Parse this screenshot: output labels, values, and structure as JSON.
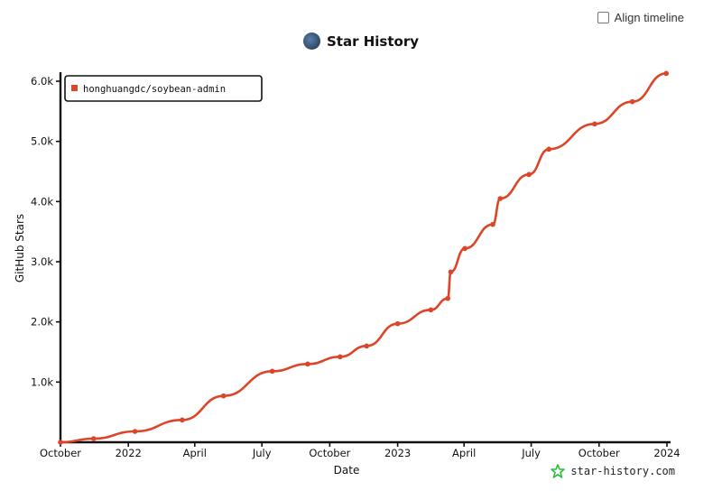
{
  "align_timeline_label": "Align timeline",
  "chart_data": {
    "type": "line",
    "title": "Star History",
    "xlabel": "Date",
    "ylabel": "GitHub Stars",
    "ylim": [
      0,
      6000
    ],
    "yticks": [
      {
        "value": 1000,
        "label": "1.0k"
      },
      {
        "value": 2000,
        "label": "2.0k"
      },
      {
        "value": 3000,
        "label": "3.0k"
      },
      {
        "value": 4000,
        "label": "4.0k"
      },
      {
        "value": 5000,
        "label": "5.0k"
      },
      {
        "value": 6000,
        "label": "6.0k"
      }
    ],
    "xlim": [
      "2021-10-01",
      "2024-01-01"
    ],
    "xticks": [
      {
        "date": "2021-10-01",
        "label": "October"
      },
      {
        "date": "2022-01-01",
        "label": "2022"
      },
      {
        "date": "2022-04-01",
        "label": "April"
      },
      {
        "date": "2022-07-01",
        "label": "July"
      },
      {
        "date": "2022-10-01",
        "label": "October"
      },
      {
        "date": "2023-01-01",
        "label": "2023"
      },
      {
        "date": "2023-04-01",
        "label": "April"
      },
      {
        "date": "2023-07-01",
        "label": "July"
      },
      {
        "date": "2023-10-01",
        "label": "October"
      },
      {
        "date": "2024-01-01",
        "label": "2024"
      }
    ],
    "legend_position": "top-left",
    "series": [
      {
        "name": "honghuangdc/soybean-admin",
        "color": "#dd4528",
        "points": [
          {
            "x": "2021-10-01",
            "y": 0
          },
          {
            "x": "2021-11-15",
            "y": 60
          },
          {
            "x": "2022-01-10",
            "y": 180
          },
          {
            "x": "2022-03-15",
            "y": 370
          },
          {
            "x": "2022-05-10",
            "y": 770
          },
          {
            "x": "2022-07-15",
            "y": 1180
          },
          {
            "x": "2022-09-01",
            "y": 1300
          },
          {
            "x": "2022-10-15",
            "y": 1420
          },
          {
            "x": "2022-11-20",
            "y": 1600
          },
          {
            "x": "2023-01-01",
            "y": 1970
          },
          {
            "x": "2023-02-15",
            "y": 2200
          },
          {
            "x": "2023-03-10",
            "y": 2390
          },
          {
            "x": "2023-03-14",
            "y": 2830
          },
          {
            "x": "2023-04-02",
            "y": 3220
          },
          {
            "x": "2023-05-10",
            "y": 3620
          },
          {
            "x": "2023-05-20",
            "y": 4050
          },
          {
            "x": "2023-06-28",
            "y": 4450
          },
          {
            "x": "2023-07-25",
            "y": 4870
          },
          {
            "x": "2023-09-25",
            "y": 5290
          },
          {
            "x": "2023-11-15",
            "y": 5660
          },
          {
            "x": "2023-12-31",
            "y": 6130
          }
        ]
      }
    ]
  },
  "watermark_text": "star-history.com",
  "icons": {
    "avatar": "avatar-icon",
    "checkbox": "checkbox-icon",
    "watermark": "star-logo-icon"
  }
}
